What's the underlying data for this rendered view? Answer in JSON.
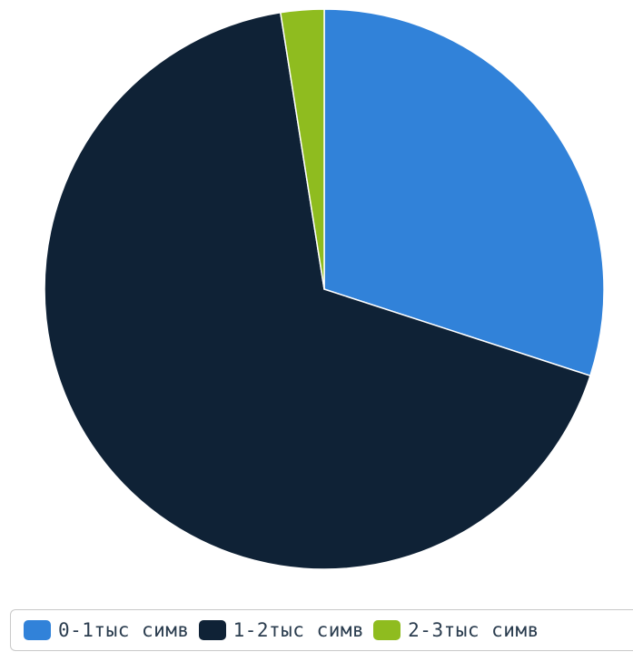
{
  "chart_data": {
    "type": "pie",
    "title": "",
    "start_angle_deg": 0,
    "direction": "clockwise",
    "legend_placement": "bottom",
    "slices": [
      {
        "label": "0-1тыс симв",
        "value": 30.0,
        "color": "#3182d9"
      },
      {
        "label": "1-2тыс симв",
        "value": 67.5,
        "color": "#0f2236"
      },
      {
        "label": "2-3тыс симв",
        "value": 2.5,
        "color": "#8fbc1f"
      }
    ]
  }
}
